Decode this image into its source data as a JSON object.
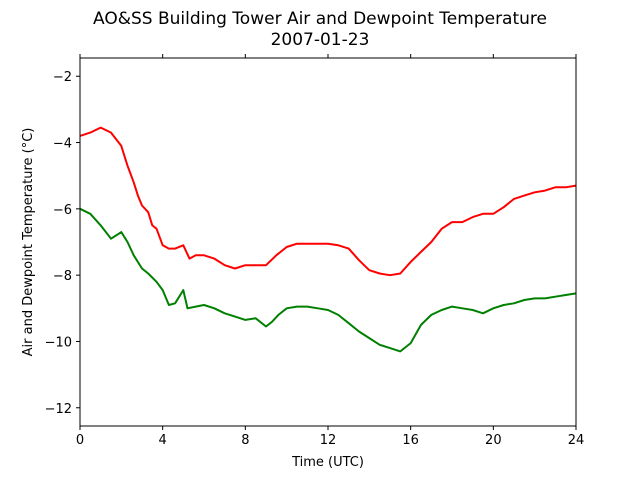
{
  "chart_data": {
    "type": "line",
    "title": "AO&SS Building Tower Air and Dewpoint Temperature",
    "subtitle": "2007-01-23",
    "xlabel": "Time (UTC)",
    "ylabel": "Air and Dewpoint Temperature (°C)",
    "xlim": [
      0,
      24
    ],
    "ylim": [
      -12.55,
      -1.45
    ],
    "xticks": [
      0,
      4,
      8,
      12,
      16,
      20,
      24
    ],
    "yticks": [
      -12,
      -10,
      -8,
      -6,
      -4,
      -2
    ],
    "ytick_labels": [
      "−12",
      "−10",
      "−8",
      "−6",
      "−4",
      "−2"
    ],
    "grid": false,
    "legend": "none",
    "series": [
      {
        "color": "#ff0000",
        "x": [
          0,
          0.5,
          1,
          1.5,
          2,
          2.3,
          2.6,
          2.8,
          3,
          3.3,
          3.5,
          3.7,
          4,
          4.3,
          4.6,
          5,
          5.3,
          5.6,
          6,
          6.5,
          7,
          7.5,
          8,
          8.5,
          9,
          9.5,
          10,
          10.5,
          11,
          11.5,
          12,
          12.5,
          13,
          13.5,
          14,
          14.5,
          15,
          15.5,
          16,
          16.5,
          17,
          17.5,
          18,
          18.5,
          19,
          19.5,
          20,
          20.5,
          21,
          21.5,
          22,
          22.5,
          23,
          23.5,
          24
        ],
        "y": [
          -3.8,
          -3.7,
          -3.55,
          -3.7,
          -4.1,
          -4.7,
          -5.2,
          -5.6,
          -5.9,
          -6.1,
          -6.5,
          -6.6,
          -7.1,
          -7.2,
          -7.2,
          -7.1,
          -7.5,
          -7.4,
          -7.4,
          -7.5,
          -7.7,
          -7.8,
          -7.7,
          -7.7,
          -7.7,
          -7.4,
          -7.15,
          -7.05,
          -7.05,
          -7.05,
          -7.05,
          -7.1,
          -7.2,
          -7.55,
          -7.85,
          -7.95,
          -8.0,
          -7.95,
          -7.6,
          -7.3,
          -7.0,
          -6.6,
          -6.4,
          -6.4,
          -6.25,
          -6.15,
          -6.15,
          -5.95,
          -5.7,
          -5.6,
          -5.5,
          -5.45,
          -5.35,
          -5.35,
          -5.3
        ]
      },
      {
        "color": "#008000",
        "x": [
          0,
          0.5,
          1,
          1.5,
          2,
          2.3,
          2.6,
          3,
          3.3,
          3.7,
          4,
          4.3,
          4.6,
          5,
          5.2,
          5.6,
          6,
          6.5,
          7,
          7.5,
          8,
          8.5,
          9,
          9.3,
          9.6,
          10,
          10.5,
          11,
          11.5,
          12,
          12.5,
          13,
          13.5,
          14,
          14.5,
          15,
          15.5,
          16,
          16.5,
          17,
          17.5,
          18,
          18.5,
          19,
          19.5,
          20,
          20.5,
          21,
          21.5,
          22,
          22.5,
          23,
          23.5,
          24
        ],
        "y": [
          -6.0,
          -6.15,
          -6.5,
          -6.9,
          -6.7,
          -7.0,
          -7.4,
          -7.8,
          -7.95,
          -8.2,
          -8.45,
          -8.9,
          -8.85,
          -8.45,
          -9.0,
          -8.95,
          -8.9,
          -9.0,
          -9.15,
          -9.25,
          -9.35,
          -9.3,
          -9.55,
          -9.4,
          -9.2,
          -9.0,
          -8.95,
          -8.95,
          -9.0,
          -9.05,
          -9.2,
          -9.45,
          -9.7,
          -9.9,
          -10.1,
          -10.2,
          -10.3,
          -10.05,
          -9.5,
          -9.2,
          -9.05,
          -8.95,
          -9.0,
          -9.05,
          -9.15,
          -9.0,
          -8.9,
          -8.85,
          -8.75,
          -8.7,
          -8.7,
          -8.65,
          -8.6,
          -8.55
        ]
      }
    ]
  }
}
